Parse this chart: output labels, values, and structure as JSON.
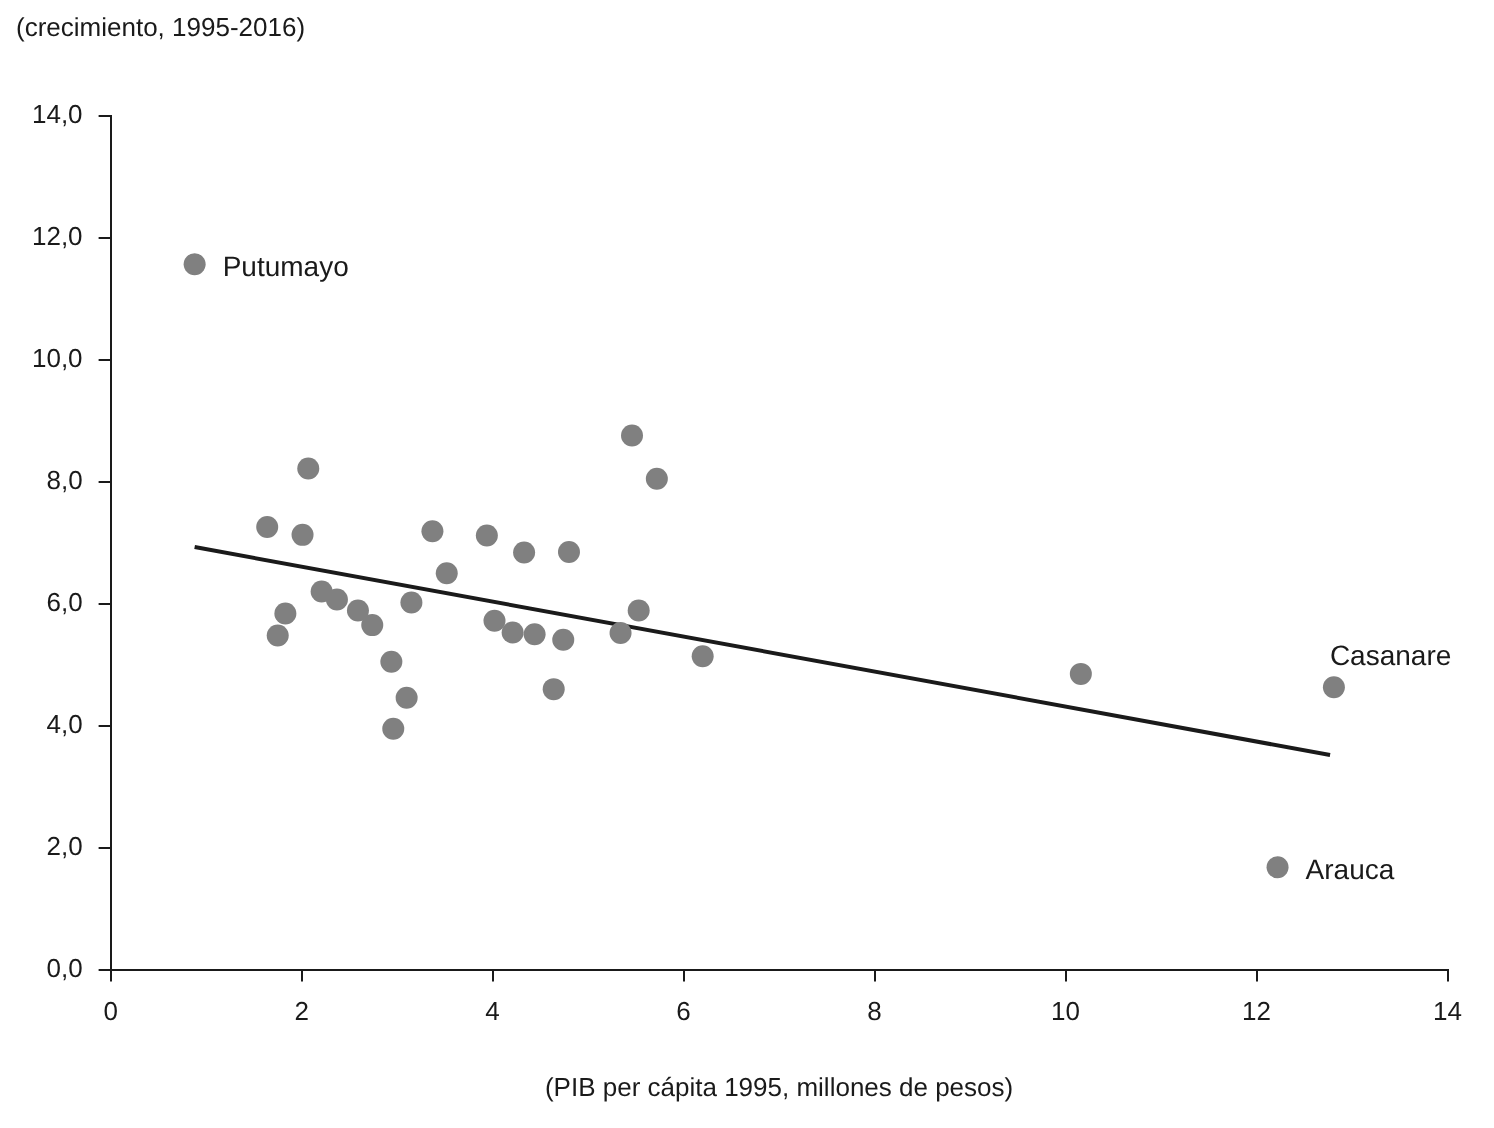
{
  "chart_data": {
    "type": "scatter",
    "ylabel": "(crecimiento, 1995-2016)",
    "xlabel": "(PIB per cápita 1995, millones de pesos)",
    "x": [
      0.88,
      1.64,
      2.07,
      2.01,
      1.83,
      1.75,
      2.21,
      2.37,
      2.59,
      2.74,
      2.94,
      3.1,
      2.96,
      3.15,
      3.37,
      3.52,
      3.94,
      4.02,
      4.21,
      4.44,
      4.33,
      4.64,
      4.74,
      4.8,
      5.34,
      5.53,
      5.46,
      5.72,
      6.2,
      10.16,
      12.81,
      12.22
    ],
    "series": [
      {
        "type": "scatter",
        "color": "#808080",
        "marker": "circle",
        "values": [
          11.57,
          7.26,
          8.22,
          7.13,
          5.84,
          5.48,
          6.2,
          6.07,
          5.89,
          5.65,
          5.05,
          4.46,
          3.95,
          6.02,
          7.19,
          6.5,
          7.12,
          5.72,
          5.53,
          5.5,
          6.84,
          4.6,
          5.41,
          6.85,
          5.52,
          5.89,
          8.76,
          8.05,
          5.14,
          4.85,
          4.63,
          1.68
        ]
      },
      {
        "type": "line",
        "color": "#1a1a1a",
        "marker": "none",
        "x": [
          0.88,
          12.77
        ],
        "values": [
          6.93,
          3.52
        ]
      }
    ],
    "annotations": [
      {
        "text": "Putumayo",
        "x": 0.88,
        "y": 11.57
      },
      {
        "text": "Casanare",
        "x": 12.81,
        "y": 4.63
      },
      {
        "text": "Arauca",
        "x": 12.22,
        "y": 1.68
      }
    ],
    "xlim": [
      0,
      14
    ],
    "xticks": [
      0,
      2,
      4,
      6,
      8,
      10,
      12,
      14
    ],
    "ylim": [
      0,
      14
    ],
    "yticks": [
      {
        "value": 0,
        "label": "0,0"
      },
      {
        "value": 2,
        "label": "2,0"
      },
      {
        "value": 4,
        "label": "4,0"
      },
      {
        "value": 6,
        "label": "6,0"
      },
      {
        "value": 8,
        "label": "8,0"
      },
      {
        "value": 10,
        "label": "10,0"
      },
      {
        "value": 12,
        "label": "12,0"
      },
      {
        "value": 14,
        "label": "14,0"
      }
    ],
    "grid": false,
    "legend": false
  }
}
